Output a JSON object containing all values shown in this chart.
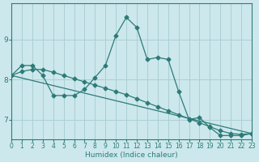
{
  "xlabel": "Humidex (Indice chaleur)",
  "ylabel": "",
  "bg_color": "#cce8ec",
  "grid_color": "#aacfd4",
  "line_color": "#2d7b78",
  "line1": {
    "x": [
      0,
      1,
      2,
      3,
      4,
      5,
      6,
      7,
      8,
      9,
      10,
      11,
      12,
      13,
      14,
      15,
      16,
      17,
      18,
      19,
      20,
      21,
      22,
      23
    ],
    "y": [
      8.1,
      8.35,
      8.35,
      8.1,
      7.6,
      7.6,
      7.6,
      7.75,
      8.05,
      8.35,
      9.1,
      9.55,
      9.3,
      8.5,
      8.55,
      8.5,
      7.7,
      7.0,
      7.05,
      6.8,
      6.6,
      6.6,
      6.6,
      6.65
    ]
  },
  "line2": {
    "x": [
      0,
      23
    ],
    "y": [
      8.1,
      6.65
    ]
  },
  "line3": {
    "x": [
      0,
      1,
      2,
      3,
      4,
      5,
      6,
      7,
      8,
      9,
      10,
      11,
      12,
      13,
      14,
      15,
      16,
      17,
      18,
      19,
      20,
      21,
      22,
      23
    ],
    "y": [
      8.1,
      8.2,
      8.25,
      8.25,
      8.18,
      8.1,
      8.02,
      7.94,
      7.86,
      7.78,
      7.7,
      7.62,
      7.52,
      7.42,
      7.32,
      7.22,
      7.12,
      7.02,
      6.92,
      6.82,
      6.72,
      6.65,
      6.63,
      6.65
    ]
  },
  "xlim": [
    0,
    23
  ],
  "ylim": [
    6.5,
    9.9
  ],
  "yticks": [
    7,
    8,
    9
  ],
  "xticks": [
    0,
    1,
    2,
    3,
    4,
    5,
    6,
    7,
    8,
    9,
    10,
    11,
    12,
    13,
    14,
    15,
    16,
    17,
    18,
    19,
    20,
    21,
    22,
    23
  ],
  "marker": "D",
  "markersize": 2.5,
  "lw": 0.9,
  "xlabel_fontsize": 6.5,
  "tick_fontsize": 5.5,
  "ytick_fontsize": 6.5
}
